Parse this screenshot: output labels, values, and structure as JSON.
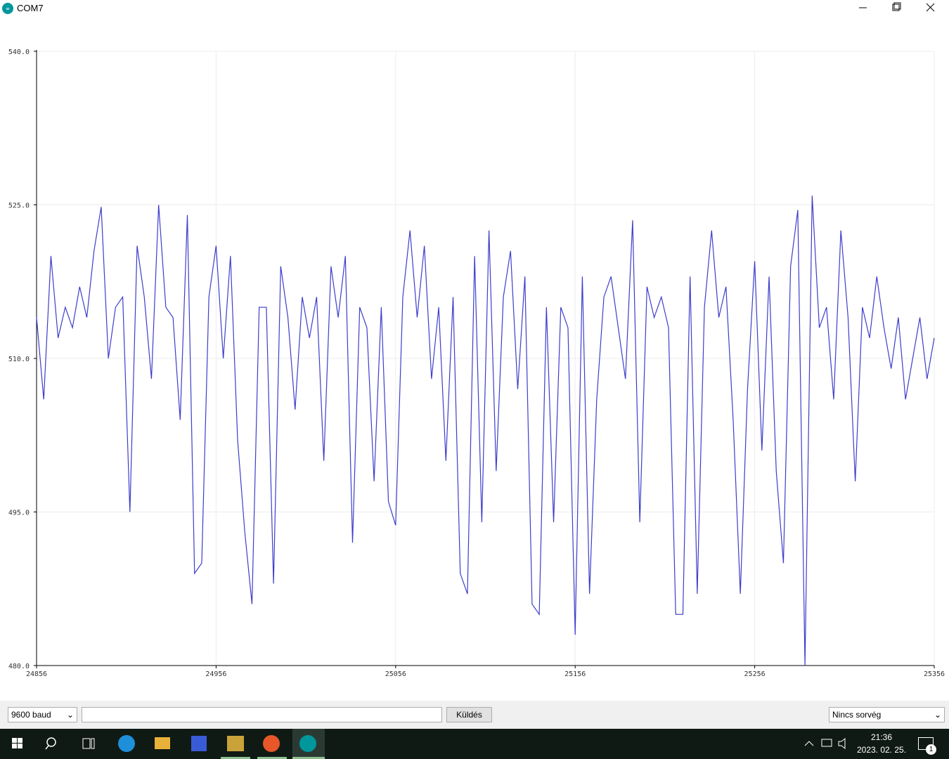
{
  "window": {
    "title": "COM7"
  },
  "chart_data": {
    "type": "line",
    "x": [
      24856,
      24860,
      24864,
      24868,
      24872,
      24876,
      24880,
      24884,
      24888,
      24892,
      24896,
      24900,
      24904,
      24908,
      24912,
      24916,
      24920,
      24924,
      24928,
      24932,
      24936,
      24940,
      24944,
      24948,
      24952,
      24956,
      24960,
      24964,
      24968,
      24972,
      24976,
      24980,
      24984,
      24988,
      24992,
      24996,
      25000,
      25004,
      25008,
      25012,
      25016,
      25020,
      25024,
      25028,
      25032,
      25036,
      25040,
      25044,
      25048,
      25052,
      25056,
      25060,
      25064,
      25068,
      25072,
      25076,
      25080,
      25084,
      25088,
      25092,
      25096,
      25100,
      25104,
      25108,
      25112,
      25116,
      25120,
      25124,
      25128,
      25132,
      25136,
      25140,
      25144,
      25148,
      25152,
      25156,
      25160,
      25164,
      25168,
      25172,
      25176,
      25180,
      25184,
      25188,
      25192,
      25196,
      25200,
      25204,
      25208,
      25212,
      25216,
      25220,
      25224,
      25228,
      25232,
      25236,
      25240,
      25244,
      25248,
      25252,
      25256,
      25260,
      25264,
      25268,
      25272,
      25276,
      25280,
      25284,
      25288,
      25292,
      25296,
      25300,
      25304,
      25308,
      25312,
      25316,
      25320,
      25324,
      25328,
      25332,
      25336,
      25340,
      25344,
      25348,
      25352,
      25356
    ],
    "series": [
      {
        "color": "#3d3dcc",
        "values": [
          514,
          506,
          520,
          512,
          515,
          513,
          517,
          514,
          520.5,
          524.8,
          510,
          515,
          516,
          495,
          521,
          516,
          508,
          525,
          515,
          514,
          504,
          524,
          489,
          490,
          516,
          521,
          510,
          520,
          502,
          493,
          486,
          515,
          515,
          488,
          519,
          514,
          505,
          516,
          512,
          516,
          500,
          519,
          514,
          520,
          492,
          515,
          513,
          498,
          515,
          496,
          493.7,
          516,
          522.5,
          514,
          521,
          508,
          515,
          500,
          516,
          489,
          487,
          520,
          494,
          522.5,
          499,
          516,
          520.5,
          507,
          518,
          486,
          485,
          515,
          494,
          515,
          513,
          483,
          518,
          487,
          506,
          516,
          518,
          513,
          508,
          523.5,
          494,
          517,
          514,
          516,
          513,
          485,
          485,
          518,
          487,
          515,
          522.5,
          514,
          517,
          504,
          487,
          507,
          519.5,
          501,
          518,
          499,
          490,
          519,
          524.5,
          480,
          525.9,
          513,
          515,
          506,
          522.5,
          514,
          498,
          515,
          512,
          518,
          513,
          509,
          514,
          506,
          510,
          514,
          508,
          512
        ]
      }
    ],
    "xlim": [
      24856,
      25356
    ],
    "ylim": [
      480,
      540
    ],
    "xticks": [
      24856,
      24956,
      25056,
      25156,
      25256,
      25356
    ],
    "yticks": [
      {
        "value": 480,
        "label": "480.0"
      },
      {
        "value": 495,
        "label": "495.0"
      },
      {
        "value": 510,
        "label": "510.0"
      },
      {
        "value": 525,
        "label": "525.0"
      },
      {
        "value": 540,
        "label": "540.0"
      }
    ],
    "grid": true
  },
  "controls": {
    "baud": "9600 baud",
    "send": "Küldés",
    "line_ending": "Nincs sorvég"
  },
  "taskbar": {
    "time": "21:36",
    "date": "2023. 02. 25.",
    "notifications": "1"
  }
}
